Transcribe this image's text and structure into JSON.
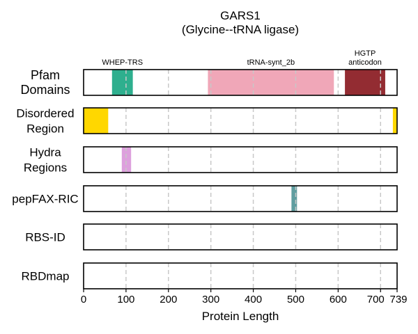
{
  "chart_data": {
    "type": "bar",
    "title_lines": [
      "GARS1",
      "(Glycine--tRNA ligase)"
    ],
    "xlabel": "Protein Length",
    "xlim": [
      0,
      739
    ],
    "xticks": [
      0,
      100,
      200,
      300,
      400,
      500,
      600,
      700,
      739
    ],
    "xtick_labels": [
      "0",
      "100",
      "200",
      "300",
      "400",
      "500",
      "600",
      "700",
      "739"
    ],
    "grid": "vertical dashed at 100-step ticks",
    "tracks": [
      {
        "label_lines": [
          "Pfam",
          "Domains"
        ],
        "segments": [
          {
            "name": "WHEP-TRS",
            "label_lines": [
              "WHEP-TRS"
            ],
            "start": 67,
            "end": 116,
            "color": "#2eaf8e"
          },
          {
            "name": "tRNA-synt_2b",
            "label_lines": [
              "tRNA-synt_2b"
            ],
            "start": 293,
            "end": 590,
            "color": "#f0a7b8"
          },
          {
            "name": "HGTP anticodon",
            "label_lines": [
              "HGTP",
              "anticodon"
            ],
            "start": 616,
            "end": 711,
            "color": "#932c32"
          }
        ]
      },
      {
        "label_lines": [
          "Disordered",
          "Region"
        ],
        "segments": [
          {
            "start": 0,
            "end": 58,
            "color": "#ffd700"
          },
          {
            "start": 729,
            "end": 739,
            "color": "#ffd700"
          }
        ]
      },
      {
        "label_lines": [
          "Hydra",
          "Regions"
        ],
        "segments": [
          {
            "start": 90,
            "end": 112,
            "color": "#dda0dd"
          }
        ]
      },
      {
        "label_lines": [
          "pepFAX-RIC"
        ],
        "segments": [
          {
            "start": 490,
            "end": 503,
            "color": "#5f9ea0"
          }
        ]
      },
      {
        "label_lines": [
          "RBS-ID"
        ],
        "segments": []
      },
      {
        "label_lines": [
          "RBDmap"
        ],
        "segments": []
      }
    ]
  }
}
